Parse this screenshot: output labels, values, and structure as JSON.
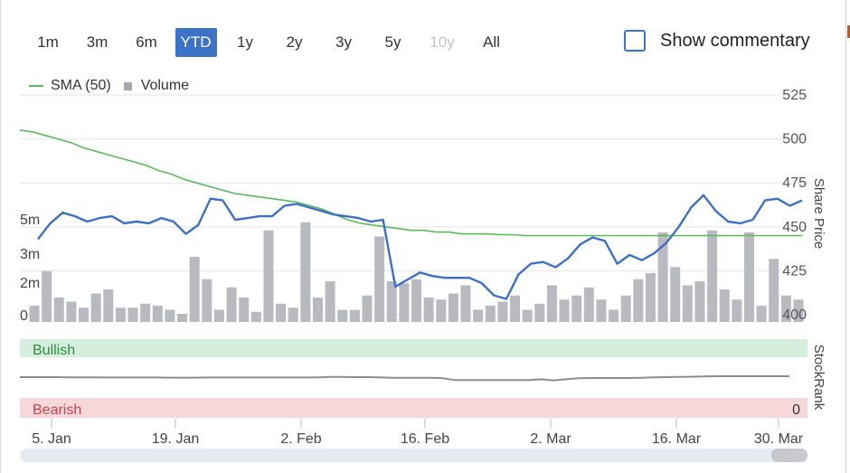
{
  "range_selector": {
    "buttons": [
      {
        "label": "1m",
        "state": "normal"
      },
      {
        "label": "3m",
        "state": "normal"
      },
      {
        "label": "6m",
        "state": "normal"
      },
      {
        "label": "YTD",
        "state": "active"
      },
      {
        "label": "1y",
        "state": "normal"
      },
      {
        "label": "2y",
        "state": "normal"
      },
      {
        "label": "3y",
        "state": "normal"
      },
      {
        "label": "5y",
        "state": "normal"
      },
      {
        "label": "10y",
        "state": "disabled"
      },
      {
        "label": "All",
        "state": "normal"
      }
    ]
  },
  "commentary": {
    "label": "Show commentary",
    "checked": false
  },
  "legend": {
    "sma_label": "SMA (50)",
    "volume_label": "Volume"
  },
  "colors": {
    "price": "#3d6fc3",
    "sma": "#5cb85c",
    "volume": "#b9bac0",
    "active_button": "#3d73c6",
    "bullish_band": "#d6eedd",
    "bullish_text": "#2e8b3e",
    "bearish_band": "#f6d8da",
    "bearish_text": "#c8434f",
    "stockrank_line": "#8d8d8d",
    "navigator_track": "#e6eaf2",
    "navigator_handle": "#c8c9cc"
  },
  "chart_data": {
    "type": "line",
    "x_ticks": [
      "5. Jan",
      "19. Jan",
      "2. Feb",
      "16. Feb",
      "2. Mar",
      "16. Mar",
      "30. Mar"
    ],
    "price_axis": {
      "label": "Share Price",
      "ticks": [
        "525",
        "500",
        "475",
        "450",
        "425",
        "400"
      ],
      "ylim": [
        400,
        525
      ]
    },
    "volume_axis": {
      "ticks": [
        "5m",
        "3m",
        "2m",
        "0"
      ]
    },
    "grid": true,
    "series": [
      {
        "name": "Share Price",
        "kind": "line",
        "values": [
          443,
          452,
          458,
          456,
          453,
          455,
          456,
          452,
          453,
          452,
          455,
          453,
          446,
          451,
          466,
          465,
          454,
          455,
          456,
          456,
          462,
          463,
          461,
          459,
          457,
          456,
          455,
          453,
          454,
          416,
          420,
          424,
          422,
          421,
          421,
          421,
          418,
          411,
          409,
          423,
          429,
          430,
          427,
          432,
          440,
          444,
          442,
          429,
          434,
          431,
          435,
          441,
          450,
          461,
          468,
          459,
          453,
          452,
          454,
          465,
          466,
          462,
          465
        ]
      },
      {
        "name": "SMA (50)",
        "kind": "line",
        "values": [
          505,
          504,
          502,
          500,
          498,
          495,
          493,
          491,
          489,
          487,
          485,
          482,
          480,
          477,
          475,
          473,
          471,
          469,
          468,
          467,
          466,
          465,
          464,
          462,
          460,
          457,
          454,
          452,
          451,
          450,
          449,
          448,
          448,
          447,
          447,
          446,
          446,
          446,
          445.5,
          445.5,
          445,
          445,
          445,
          445,
          445,
          445,
          445,
          445,
          445,
          445,
          445,
          445,
          445,
          445,
          445,
          445,
          445,
          445,
          445,
          445,
          445,
          445,
          445
        ]
      },
      {
        "name": "Volume",
        "kind": "bar",
        "values": [
          0.8,
          2.5,
          1.2,
          1.0,
          0.7,
          1.4,
          1.6,
          0.7,
          0.7,
          0.9,
          0.8,
          0.6,
          0.4,
          3.2,
          2.1,
          0.6,
          1.7,
          1.2,
          0.5,
          4.5,
          0.9,
          0.7,
          4.9,
          1.2,
          2.0,
          0.6,
          0.6,
          1.3,
          4.2,
          2.0,
          1.9,
          2.1,
          1.2,
          1.1,
          1.4,
          1.8,
          0.6,
          0.8,
          1.0,
          1.3,
          0.6,
          0.9,
          1.8,
          1.1,
          1.3,
          1.7,
          1.1,
          0.6,
          1.3,
          2.1,
          2.4,
          4.4,
          2.7,
          1.8,
          2.0,
          4.5,
          1.6,
          1.1,
          4.4,
          0.8,
          3.1,
          1.3,
          1.1
        ]
      },
      {
        "name": "StockRank",
        "kind": "line",
        "values": [
          70,
          70,
          70,
          70,
          69.5,
          69.5,
          69.5,
          69,
          69,
          69,
          69,
          69,
          68.5,
          68.5,
          68.5,
          69,
          69,
          69,
          69,
          69,
          69,
          69,
          69,
          69,
          69.5,
          70.5,
          70.5,
          70,
          70,
          69.5,
          68,
          68,
          68,
          68,
          67.5,
          62,
          62,
          62,
          62,
          62,
          62,
          62,
          64,
          61,
          64,
          67,
          67.5,
          67.5,
          67.5,
          67.5,
          68,
          69.5,
          70,
          70.5,
          71,
          72,
          72.5,
          72.5,
          72.5,
          72.5,
          72.5,
          72.5,
          72.5
        ]
      }
    ],
    "stockrank_bands": {
      "top_label": "Bullish",
      "bottom_label": "Bearish",
      "axis_label": "StockRank",
      "bottom_tick": "0"
    }
  }
}
